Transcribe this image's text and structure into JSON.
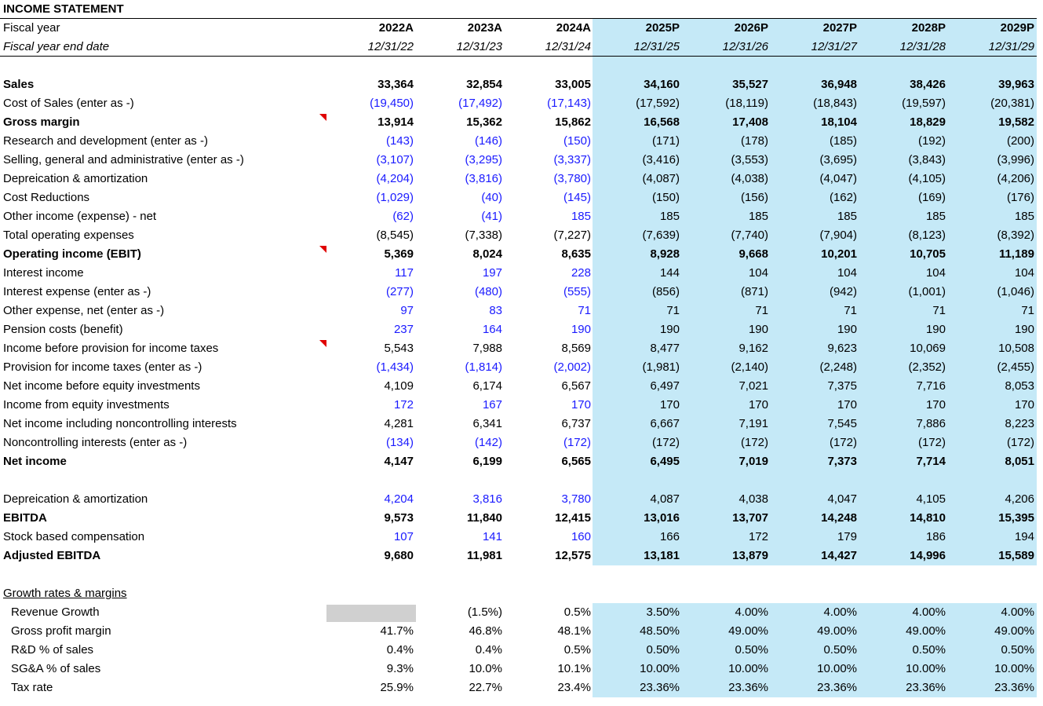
{
  "title": "INCOME STATEMENT",
  "input_color": "#1a1aff",
  "table": {
    "header_labels": [
      "Fiscal year",
      "Fiscal year end date"
    ],
    "columns": [
      {
        "year": "2022A",
        "date": "12/31/22",
        "projected": false
      },
      {
        "year": "2023A",
        "date": "12/31/23",
        "projected": false
      },
      {
        "year": "2024A",
        "date": "12/31/24",
        "projected": false
      },
      {
        "year": "2025P",
        "date": "12/31/25",
        "projected": true
      },
      {
        "year": "2026P",
        "date": "12/31/26",
        "projected": true
      },
      {
        "year": "2027P",
        "date": "12/31/27",
        "projected": true
      },
      {
        "year": "2028P",
        "date": "12/31/28",
        "projected": true
      },
      {
        "year": "2029P",
        "date": "12/31/29",
        "projected": true
      }
    ],
    "sections": [
      {
        "rows": [
          {
            "label": "Sales",
            "bold": true,
            "values": [
              "33,364",
              "32,854",
              "33,005",
              "34,160",
              "35,527",
              "36,948",
              "38,426",
              "39,963"
            ]
          },
          {
            "label": "Cost of Sales (enter as -)",
            "input": true,
            "values": [
              "(19,450)",
              "(17,492)",
              "(17,143)",
              "(17,592)",
              "(18,119)",
              "(18,843)",
              "(19,597)",
              "(20,381)"
            ]
          },
          {
            "label": "Gross margin",
            "bold": true,
            "comment": true,
            "values": [
              "13,914",
              "15,362",
              "15,862",
              "16,568",
              "17,408",
              "18,104",
              "18,829",
              "19,582"
            ]
          },
          {
            "label": "Research and development (enter as -)",
            "input": true,
            "values": [
              "(143)",
              "(146)",
              "(150)",
              "(171)",
              "(178)",
              "(185)",
              "(192)",
              "(200)"
            ]
          },
          {
            "label": "Selling, general and administrative (enter as -)",
            "input": true,
            "values": [
              "(3,107)",
              "(3,295)",
              "(3,337)",
              "(3,416)",
              "(3,553)",
              "(3,695)",
              "(3,843)",
              "(3,996)"
            ]
          },
          {
            "label": "Depreication & amortization",
            "input": true,
            "values": [
              "(4,204)",
              "(3,816)",
              "(3,780)",
              "(4,087)",
              "(4,038)",
              "(4,047)",
              "(4,105)",
              "(4,206)"
            ]
          },
          {
            "label": "Cost Reductions",
            "input": true,
            "values": [
              "(1,029)",
              "(40)",
              "(145)",
              "(150)",
              "(156)",
              "(162)",
              "(169)",
              "(176)"
            ]
          },
          {
            "label": "Other income (expense) - net",
            "input": true,
            "values": [
              "(62)",
              "(41)",
              "185",
              "185",
              "185",
              "185",
              "185",
              "185"
            ]
          },
          {
            "label": "Total operating expenses",
            "values": [
              "(8,545)",
              "(7,338)",
              "(7,227)",
              "(7,639)",
              "(7,740)",
              "(7,904)",
              "(8,123)",
              "(8,392)"
            ]
          },
          {
            "label": "Operating income (EBIT)",
            "bold": true,
            "comment": true,
            "values": [
              "5,369",
              "8,024",
              "8,635",
              "8,928",
              "9,668",
              "10,201",
              "10,705",
              "11,189"
            ]
          },
          {
            "label": "Interest income",
            "input": true,
            "values": [
              "117",
              "197",
              "228",
              "144",
              "104",
              "104",
              "104",
              "104"
            ]
          },
          {
            "label": "Interest expense (enter as -)",
            "input": true,
            "values": [
              "(277)",
              "(480)",
              "(555)",
              "(856)",
              "(871)",
              "(942)",
              "(1,001)",
              "(1,046)"
            ]
          },
          {
            "label": "Other expense, net (enter as -)",
            "input": true,
            "values": [
              "97",
              "83",
              "71",
              "71",
              "71",
              "71",
              "71",
              "71"
            ]
          },
          {
            "label": "Pension costs (benefit)",
            "input": true,
            "values": [
              "237",
              "164",
              "190",
              "190",
              "190",
              "190",
              "190",
              "190"
            ]
          },
          {
            "label": "Income before provision for income taxes",
            "comment": true,
            "values": [
              "5,543",
              "7,988",
              "8,569",
              "8,477",
              "9,162",
              "9,623",
              "10,069",
              "10,508"
            ]
          },
          {
            "label": "Provision for income taxes (enter as -)",
            "input": true,
            "values": [
              "(1,434)",
              "(1,814)",
              "(2,002)",
              "(1,981)",
              "(2,140)",
              "(2,248)",
              "(2,352)",
              "(2,455)"
            ]
          },
          {
            "label": "Net income before equity investments",
            "values": [
              "4,109",
              "6,174",
              "6,567",
              "6,497",
              "7,021",
              "7,375",
              "7,716",
              "8,053"
            ]
          },
          {
            "label": "Income from equity investments",
            "input": true,
            "values": [
              "172",
              "167",
              "170",
              "170",
              "170",
              "170",
              "170",
              "170"
            ]
          },
          {
            "label": "Net income including noncontrolling interests",
            "values": [
              "4,281",
              "6,341",
              "6,737",
              "6,667",
              "7,191",
              "7,545",
              "7,886",
              "8,223"
            ]
          },
          {
            "label": "Noncontrolling interests (enter as -)",
            "input": true,
            "values": [
              "(134)",
              "(142)",
              "(172)",
              "(172)",
              "(172)",
              "(172)",
              "(172)",
              "(172)"
            ]
          },
          {
            "label": "Net income",
            "bold": true,
            "values": [
              "4,147",
              "6,199",
              "6,565",
              "6,495",
              "7,019",
              "7,373",
              "7,714",
              "8,051"
            ]
          }
        ]
      },
      {
        "rows": [
          {
            "label": "Depreication & amortization",
            "input": true,
            "values": [
              "4,204",
              "3,816",
              "3,780",
              "4,087",
              "4,038",
              "4,047",
              "4,105",
              "4,206"
            ]
          },
          {
            "label": "EBITDA",
            "bold": true,
            "values": [
              "9,573",
              "11,840",
              "12,415",
              "13,016",
              "13,707",
              "14,248",
              "14,810",
              "15,395"
            ]
          },
          {
            "label": "Stock based compensation",
            "input": true,
            "values": [
              "107",
              "141",
              "160",
              "166",
              "172",
              "179",
              "186",
              "194"
            ]
          },
          {
            "label": "Adjusted EBITDA",
            "bold": true,
            "values": [
              "9,680",
              "11,981",
              "12,575",
              "13,181",
              "13,879",
              "14,427",
              "14,996",
              "15,589"
            ]
          }
        ]
      },
      {
        "heading": "Growth rates & margins",
        "indent": true,
        "rows": [
          {
            "label": "Revenue Growth",
            "values": [
              null,
              "(1.5%)",
              "0.5%",
              "3.50%",
              "4.00%",
              "4.00%",
              "4.00%",
              "4.00%"
            ]
          },
          {
            "label": "Gross profit margin",
            "values": [
              "41.7%",
              "46.8%",
              "48.1%",
              "48.50%",
              "49.00%",
              "49.00%",
              "49.00%",
              "49.00%"
            ]
          },
          {
            "label": "R&D % of sales",
            "values": [
              "0.4%",
              "0.4%",
              "0.5%",
              "0.50%",
              "0.50%",
              "0.50%",
              "0.50%",
              "0.50%"
            ]
          },
          {
            "label": "SG&A % of sales",
            "values": [
              "9.3%",
              "10.0%",
              "10.1%",
              "10.00%",
              "10.00%",
              "10.00%",
              "10.00%",
              "10.00%"
            ]
          },
          {
            "label": "Tax rate",
            "values": [
              "25.9%",
              "22.7%",
              "23.4%",
              "23.36%",
              "23.36%",
              "23.36%",
              "23.36%",
              "23.36%"
            ]
          }
        ]
      }
    ]
  }
}
